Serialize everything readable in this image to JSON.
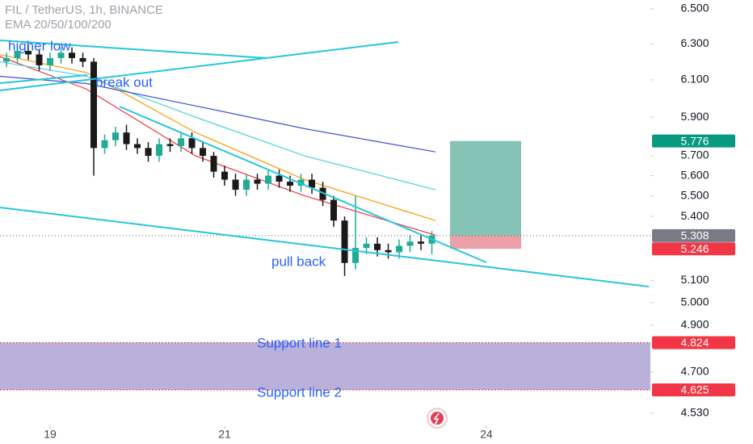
{
  "chart_data": {
    "type": "candlestick",
    "title": "FIL / TetherUS, 1h, BINANCE",
    "subtitle": "EMA 20/50/100/200",
    "log_scale": true,
    "ylim": [
      4.487,
      6.551
    ],
    "yticks": [
      {
        "value": 6.5,
        "label": "6.500"
      },
      {
        "value": 6.3,
        "label": "6.300"
      },
      {
        "value": 6.1,
        "label": "6.100"
      },
      {
        "value": 5.9,
        "label": "5.900"
      },
      {
        "value": 5.7,
        "label": "5.700"
      },
      {
        "value": 5.6,
        "label": "5.600"
      },
      {
        "value": 5.5,
        "label": "5.500"
      },
      {
        "value": 5.4,
        "label": "5.400"
      },
      {
        "value": 5.1,
        "label": "5.100"
      },
      {
        "value": 5.0,
        "label": "5.000"
      },
      {
        "value": 4.9,
        "label": "4.900"
      },
      {
        "value": 4.7,
        "label": "4.700"
      },
      {
        "value": 4.53,
        "label": "4.530"
      }
    ],
    "xlim": [
      -13.78,
      165.1
    ],
    "xticks": [
      {
        "value": 0,
        "label": "19"
      },
      {
        "value": 48,
        "label": "21"
      },
      {
        "value": 120,
        "label": "24"
      }
    ],
    "up_color": "#22ab94",
    "down_color": "#1a1a1a",
    "x": [
      -12,
      -9,
      -6,
      -3,
      0,
      3,
      6,
      9,
      12,
      15,
      18,
      21,
      24,
      27,
      30,
      33,
      36,
      39,
      42,
      45,
      48,
      51,
      54,
      57,
      60,
      63,
      66,
      69,
      72,
      75,
      78,
      81,
      84,
      87,
      90,
      93,
      96,
      99,
      102,
      105
    ],
    "open": [
      6.2,
      6.22,
      6.26,
      6.24,
      6.18,
      6.22,
      6.25,
      6.22,
      6.2,
      5.74,
      5.78,
      5.82,
      5.76,
      5.74,
      5.7,
      5.76,
      5.75,
      5.79,
      5.74,
      5.7,
      5.62,
      5.58,
      5.53,
      5.58,
      5.56,
      5.6,
      5.57,
      5.55,
      5.58,
      5.54,
      5.48,
      5.38,
      5.18,
      5.25,
      5.27,
      5.24,
      5.23,
      5.26,
      5.28,
      5.27
    ],
    "high": [
      6.25,
      6.29,
      6.29,
      6.27,
      6.25,
      6.28,
      6.28,
      6.25,
      6.22,
      5.81,
      5.85,
      5.86,
      5.79,
      5.77,
      5.79,
      5.79,
      5.82,
      5.82,
      5.77,
      5.72,
      5.65,
      5.61,
      5.61,
      5.61,
      5.63,
      5.63,
      5.6,
      5.61,
      5.61,
      5.57,
      5.5,
      5.4,
      5.5,
      5.3,
      5.3,
      5.27,
      5.29,
      5.31,
      5.31,
      5.33
    ],
    "low": [
      6.17,
      6.19,
      6.21,
      6.15,
      6.15,
      6.19,
      6.19,
      6.17,
      5.6,
      5.71,
      5.75,
      5.73,
      5.71,
      5.67,
      5.67,
      5.72,
      5.72,
      5.71,
      5.67,
      5.59,
      5.55,
      5.5,
      5.5,
      5.53,
      5.53,
      5.54,
      5.52,
      5.52,
      5.51,
      5.45,
      5.35,
      5.12,
      5.15,
      5.22,
      5.21,
      5.2,
      5.2,
      5.23,
      5.24,
      5.22
    ],
    "close": [
      6.22,
      6.26,
      6.24,
      6.18,
      6.22,
      6.25,
      6.22,
      6.2,
      5.74,
      5.78,
      5.82,
      5.76,
      5.74,
      5.7,
      5.76,
      5.75,
      5.79,
      5.74,
      5.7,
      5.62,
      5.58,
      5.53,
      5.58,
      5.56,
      5.6,
      5.57,
      5.55,
      5.58,
      5.54,
      5.48,
      5.38,
      5.18,
      5.25,
      5.27,
      5.24,
      5.23,
      5.26,
      5.28,
      5.27,
      5.308
    ],
    "ema": [
      {
        "color": "#f23645",
        "x": [
          -14,
          10,
          40,
          70,
          106
        ],
        "values": [
          6.23,
          6.05,
          5.7,
          5.5,
          5.31
        ]
      },
      {
        "color": "#ff9800",
        "x": [
          -14,
          10,
          40,
          70,
          106
        ],
        "values": [
          6.24,
          6.14,
          5.82,
          5.58,
          5.38
        ]
      },
      {
        "color": "#4dd0e1",
        "x": [
          -14,
          10,
          40,
          70,
          106
        ],
        "values": [
          6.2,
          6.12,
          5.9,
          5.7,
          5.53
        ]
      },
      {
        "color": "#3f51d4",
        "x": [
          -14,
          10,
          40,
          70,
          106
        ],
        "values": [
          6.12,
          6.08,
          5.96,
          5.84,
          5.72
        ]
      }
    ],
    "price_labels": [
      {
        "value": 5.776,
        "color": "#089981"
      },
      {
        "value": 5.308,
        "color": "#787b86"
      },
      {
        "value": 5.246,
        "color": "#f23645"
      },
      {
        "value": 4.824,
        "color": "#f23645"
      },
      {
        "value": 4.625,
        "color": "#f23645"
      }
    ],
    "annotations": [
      "higher low",
      "break out",
      "pull back",
      "Support line 1",
      "Support line 2"
    ]
  }
}
